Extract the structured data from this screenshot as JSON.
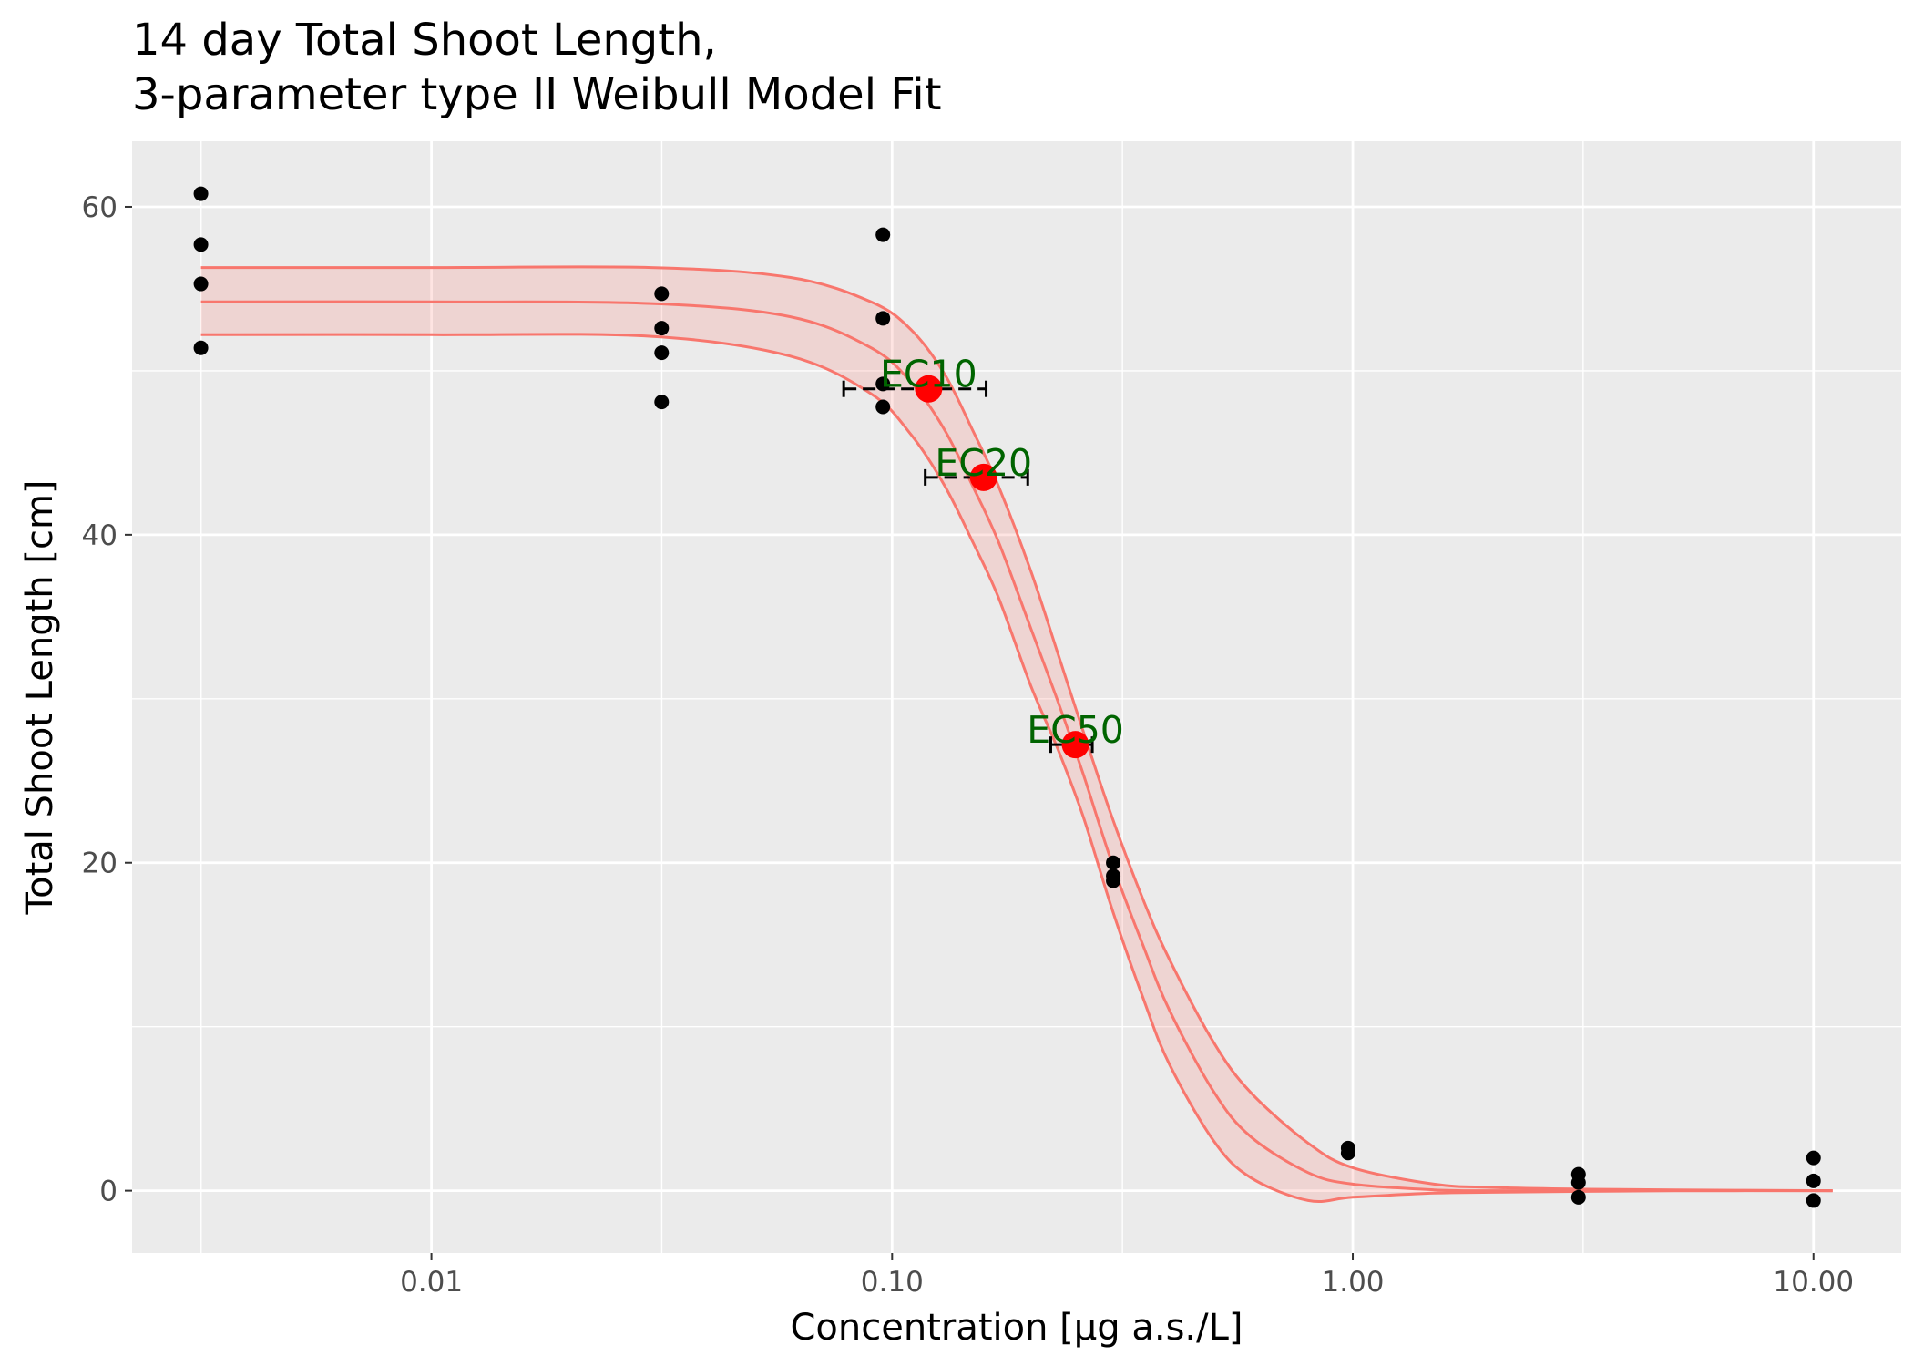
{
  "chart_data": {
    "type": "scatter",
    "title": "14 day Total Shoot Length,",
    "subtitle": "3-parameter type II Weibull Model Fit",
    "xlabel": "Concentration [µg a.s./L]",
    "ylabel": "Total Shoot Length [cm]",
    "x_scale": "log10",
    "xlim": [
      0.00224,
      15.5
    ],
    "ylim": [
      -3.8,
      64
    ],
    "x_ticks": [
      0.01,
      0.1,
      1,
      10
    ],
    "x_tick_labels": [
      "0.01",
      "0.10",
      "1.00",
      "10.00"
    ],
    "y_ticks": [
      0,
      20,
      40,
      60
    ],
    "y_tick_labels": [
      "0",
      "20",
      "40",
      "60"
    ],
    "grid": true,
    "legend": "none",
    "colors": {
      "panel": "#ebebeb",
      "grid": "#ffffff",
      "points": "#000000",
      "fit_line": "#f8766d",
      "fit_band": "#f8766d",
      "ec_points": "#ff0000",
      "ec_labels": "#006400"
    },
    "observations": [
      {
        "x": 0.00316,
        "y": 60.8
      },
      {
        "x": 0.00316,
        "y": 57.7
      },
      {
        "x": 0.00316,
        "y": 55.3
      },
      {
        "x": 0.00316,
        "y": 51.4
      },
      {
        "x": 0.0316,
        "y": 54.7
      },
      {
        "x": 0.0316,
        "y": 52.6
      },
      {
        "x": 0.0316,
        "y": 51.1
      },
      {
        "x": 0.0316,
        "y": 48.1
      },
      {
        "x": 0.0955,
        "y": 58.3
      },
      {
        "x": 0.0955,
        "y": 53.2
      },
      {
        "x": 0.0955,
        "y": 49.2
      },
      {
        "x": 0.0955,
        "y": 47.8
      },
      {
        "x": 0.302,
        "y": 20.0
      },
      {
        "x": 0.302,
        "y": 19.2
      },
      {
        "x": 0.302,
        "y": 18.9
      },
      {
        "x": 0.977,
        "y": 2.6
      },
      {
        "x": 0.977,
        "y": 2.3
      },
      {
        "x": 3.09,
        "y": 1.0
      },
      {
        "x": 3.09,
        "y": 0.5
      },
      {
        "x": 3.09,
        "y": -0.4
      },
      {
        "x": 10.0,
        "y": 2.0
      },
      {
        "x": 10.0,
        "y": 0.6
      },
      {
        "x": 10.0,
        "y": -0.6
      }
    ],
    "fit": {
      "x": [
        0.00316,
        0.01,
        0.03,
        0.06,
        0.09,
        0.11,
        0.13,
        0.15,
        0.17,
        0.2,
        0.23,
        0.26,
        0.3,
        0.35,
        0.4,
        0.5,
        0.6,
        0.8,
        1.0,
        1.5,
        2.0,
        3.0,
        5.0,
        11.0
      ],
      "y": [
        54.2,
        54.2,
        54.1,
        53.3,
        51.4,
        49.3,
        46.4,
        42.9,
        39.6,
        34.3,
        29.7,
        25.4,
        20.0,
        15.0,
        11.0,
        6.0,
        3.3,
        1.1,
        0.4,
        0.05,
        0.0,
        0.0,
        0.0,
        0.0
      ],
      "upper": [
        56.3,
        56.3,
        56.3,
        55.7,
        54.2,
        52.5,
        49.8,
        46.3,
        43.0,
        37.8,
        32.6,
        28.0,
        22.8,
        17.8,
        14.1,
        9.0,
        6.0,
        2.9,
        1.4,
        0.4,
        0.2,
        0.1,
        0.05,
        0.0
      ],
      "lower": [
        52.2,
        52.2,
        52.1,
        50.9,
        48.6,
        46.1,
        43.0,
        39.5,
        36.2,
        30.8,
        26.8,
        22.8,
        17.2,
        11.8,
        7.7,
        3.0,
        0.8,
        -0.6,
        -0.4,
        -0.15,
        -0.1,
        -0.05,
        0.0,
        0.0
      ]
    },
    "ec_estimates": [
      {
        "label": "EC10",
        "x": 0.12,
        "y": 48.9,
        "ci": [
          0.0785,
          0.16
        ]
      },
      {
        "label": "EC20",
        "x": 0.158,
        "y": 43.5,
        "ci": [
          0.118,
          0.197
        ]
      },
      {
        "label": "EC50",
        "x": 0.25,
        "y": 27.2,
        "ci": [
          0.221,
          0.272
        ]
      }
    ]
  }
}
